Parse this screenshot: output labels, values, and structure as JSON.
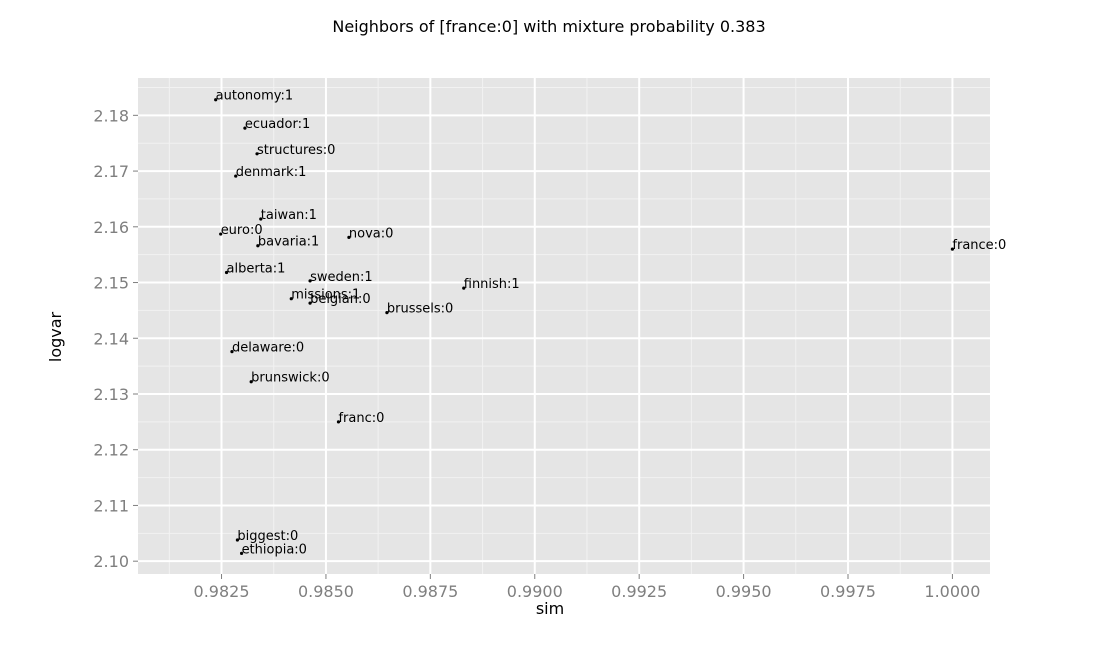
{
  "chart_data": {
    "type": "scatter",
    "title": "Neighbors of [france:0] with mixture probability 0.383",
    "xlabel": "sim",
    "ylabel": "logvar",
    "xlim": [
      0.9805,
      1.0009
    ],
    "ylim": [
      2.0977,
      2.1867
    ],
    "x_ticks": [
      0.9825,
      0.985,
      0.9875,
      0.99,
      0.9925,
      0.995,
      0.9975,
      1.0
    ],
    "x_tick_labels": [
      "0.9825",
      "0.9850",
      "0.9875",
      "0.9900",
      "0.9925",
      "0.9950",
      "0.9975",
      "1.0000"
    ],
    "y_ticks": [
      2.1,
      2.11,
      2.12,
      2.13,
      2.14,
      2.15,
      2.16,
      2.17,
      2.18
    ],
    "y_tick_labels": [
      "2.10",
      "2.11",
      "2.12",
      "2.13",
      "2.14",
      "2.15",
      "2.16",
      "2.17",
      "2.18"
    ],
    "grid": true,
    "legend": "none",
    "colors": {
      "panel_background": "#e5e5e5",
      "grid_major": "#ffffff",
      "grid_minor": "#f2f2f2",
      "point": "#000000",
      "tick_label": "#7f7f7f"
    },
    "points": [
      {
        "label": "autonomy:1",
        "x": 0.98236,
        "y": 2.1828
      },
      {
        "label": "ecuador:1",
        "x": 0.98306,
        "y": 2.1777
      },
      {
        "label": "structures:0",
        "x": 0.98335,
        "y": 2.1731
      },
      {
        "label": "denmark:1",
        "x": 0.98284,
        "y": 2.1691
      },
      {
        "label": "taiwan:1",
        "x": 0.98344,
        "y": 2.1614
      },
      {
        "label": "euro:0",
        "x": 0.98248,
        "y": 2.1587
      },
      {
        "label": "nova:0",
        "x": 0.98555,
        "y": 2.1581
      },
      {
        "label": "bavaria:1",
        "x": 0.98337,
        "y": 2.1566
      },
      {
        "label": "alberta:1",
        "x": 0.98262,
        "y": 2.1518
      },
      {
        "label": "sweden:1",
        "x": 0.98462,
        "y": 2.1503
      },
      {
        "label": "finnish:1",
        "x": 0.9883,
        "y": 2.149
      },
      {
        "label": "missions:1",
        "x": 0.98417,
        "y": 2.1471
      },
      {
        "label": "belgian:0",
        "x": 0.98462,
        "y": 2.1463
      },
      {
        "label": "brussels:0",
        "x": 0.98646,
        "y": 2.1446
      },
      {
        "label": "delaware:0",
        "x": 0.98275,
        "y": 2.1376
      },
      {
        "label": "brunswick:0",
        "x": 0.98321,
        "y": 2.1322
      },
      {
        "label": "franc:0",
        "x": 0.9853,
        "y": 2.125
      },
      {
        "label": "biggest:0",
        "x": 0.98288,
        "y": 2.1038
      },
      {
        "label": "ethiopia:0",
        "x": 0.98298,
        "y": 2.1014
      },
      {
        "label": "france:0",
        "x": 1.0,
        "y": 2.156
      }
    ]
  }
}
